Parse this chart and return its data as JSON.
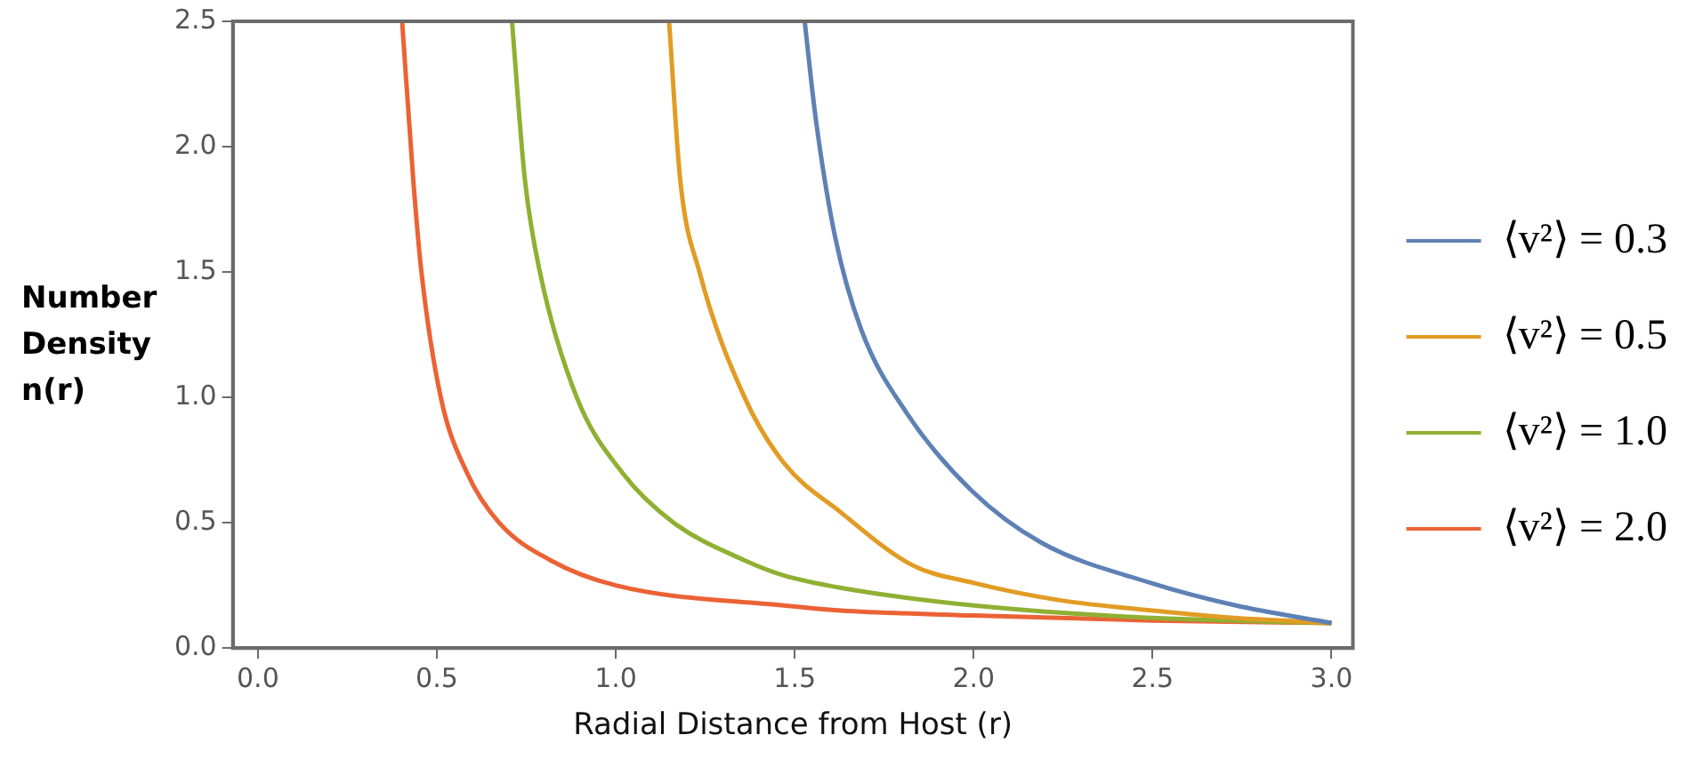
{
  "chart_data": {
    "type": "line",
    "xlabel": "Radial Distance from Host (r)",
    "ylabel": "Number Density n(r)",
    "xlim": [
      -0.07,
      3.06
    ],
    "ylim": [
      0,
      2.5
    ],
    "xticks": [
      {
        "value": 0,
        "label": "0.0"
      },
      {
        "value": 0.5,
        "label": "0.5"
      },
      {
        "value": 1,
        "label": "1.0"
      },
      {
        "value": 1.5,
        "label": "1.5"
      },
      {
        "value": 2,
        "label": "2.0"
      },
      {
        "value": 2.5,
        "label": "2.5"
      },
      {
        "value": 3,
        "label": "3.0"
      }
    ],
    "yticks": [
      {
        "value": 0,
        "label": "0.0"
      },
      {
        "value": 0.5,
        "label": "0.5"
      },
      {
        "value": 1,
        "label": "1.0"
      },
      {
        "value": 1.5,
        "label": "1.5"
      },
      {
        "value": 2,
        "label": "2.0"
      },
      {
        "value": 2.5,
        "label": "2.5"
      }
    ],
    "grid": false,
    "legend": "right",
    "marker": "none",
    "line_style": "solid",
    "series": [
      {
        "name": "⟨v²⟩ = 0.3",
        "color": "#5e81b5",
        "x": [
          1.528,
          1.559,
          1.613,
          1.686,
          1.812,
          1.993,
          2.19,
          2.495,
          2.733,
          3.0
        ],
        "values": [
          2.5,
          2.11,
          1.64,
          1.27,
          0.94,
          0.63,
          0.42,
          0.26,
          0.17,
          0.1
        ]
      },
      {
        "name": "⟨v²⟩ = 0.5",
        "color": "#e19c24",
        "x": [
          1.149,
          1.18,
          1.234,
          1.36,
          1.469,
          1.63,
          1.83,
          2.0,
          2.245,
          2.5,
          2.73,
          3.0
        ],
        "values": [
          2.5,
          1.87,
          1.5,
          1.0,
          0.74,
          0.54,
          0.33,
          0.26,
          0.19,
          0.15,
          0.12,
          0.1
        ]
      },
      {
        "name": "⟨v²⟩ = 1.0",
        "color": "#8fb032",
        "x": [
          0.71,
          0.746,
          0.788,
          0.891,
          1.018,
          1.162,
          1.36,
          1.469,
          1.63,
          2.0,
          2.5,
          3.0
        ],
        "values": [
          2.5,
          1.87,
          1.5,
          1.0,
          0.7,
          0.5,
          0.35,
          0.29,
          0.24,
          0.17,
          0.12,
          0.1
        ]
      },
      {
        "name": "⟨v²⟩ = 2.0",
        "color": "#eb6235",
        "x": [
          0.403,
          0.434,
          0.457,
          0.511,
          0.584,
          0.674,
          0.818,
          1.0,
          1.469,
          1.63,
          2.0,
          2.5,
          3.0
        ],
        "values": [
          2.5,
          1.87,
          1.5,
          1.0,
          0.7,
          0.5,
          0.35,
          0.25,
          0.17,
          0.15,
          0.13,
          0.11,
          0.1
        ]
      }
    ]
  }
}
